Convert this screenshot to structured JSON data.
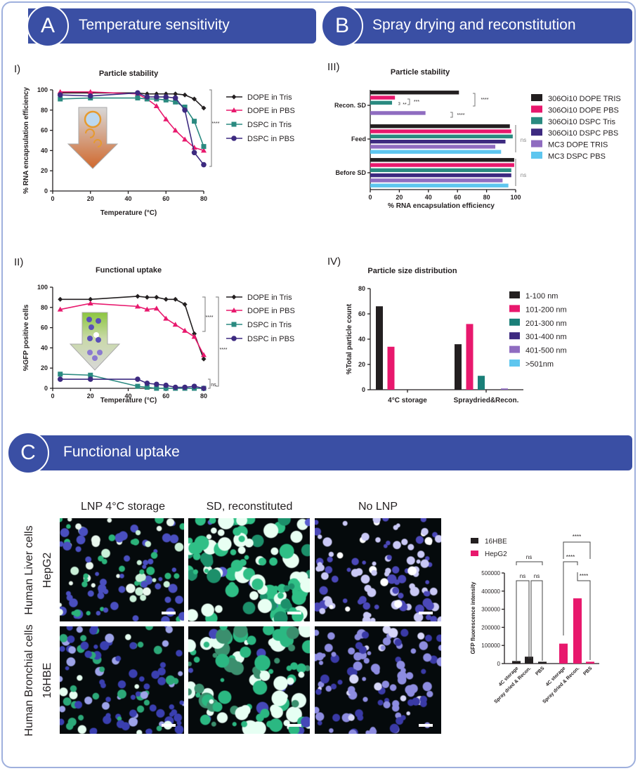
{
  "panels": {
    "A": {
      "letter": "A",
      "title": "Temperature sensitivity"
    },
    "B": {
      "letter": "B",
      "title": "Spray drying and reconstitution"
    },
    "C": {
      "letter": "C",
      "title": "Functional uptake"
    }
  },
  "microscopy": {
    "columns": [
      "LNP 4°C storage",
      "SD, reconstituted",
      "No LNP"
    ],
    "rows": [
      {
        "line1": "Human Liver cells",
        "line2": "HepG2"
      },
      {
        "line1": "Human Bronchial cells",
        "line2": "16HBE"
      }
    ]
  },
  "colors": {
    "header": "#3a4fa4",
    "black": "#231f20",
    "pink": "#e8186d",
    "teal": "#2a8a80",
    "purple": "#3d2a80",
    "lavender": "#8f6cc0",
    "lightblue": "#5ec6ef"
  },
  "chart_data": [
    {
      "panel_label": "I)",
      "type": "line",
      "title": "Particle stability",
      "xlabel": "Temperature (°C)",
      "ylabel": "% RNA encapsulation efficiency",
      "xlim": [
        0,
        80
      ],
      "xticks": [
        0,
        20,
        40,
        60,
        80
      ],
      "ylim": [
        0,
        100
      ],
      "yticks": [
        0,
        20,
        40,
        60,
        80,
        100
      ],
      "x": [
        4,
        20,
        45,
        50,
        55,
        60,
        65,
        70,
        75,
        80
      ],
      "series": [
        {
          "name": "DOPE in Tris",
          "color": "#231f20",
          "marker": "diamond",
          "values": [
            97,
            97,
            97,
            96,
            96,
            96,
            96,
            95,
            91,
            82
          ]
        },
        {
          "name": "DOPE in PBS",
          "color": "#e8186d",
          "marker": "triangle",
          "values": [
            98,
            98,
            96,
            91,
            84,
            71,
            60,
            51,
            43,
            40
          ]
        },
        {
          "name": "DSPC in Tris",
          "color": "#2a8a80",
          "marker": "square",
          "values": [
            91,
            92,
            92,
            91,
            91,
            90,
            88,
            83,
            69,
            44
          ]
        },
        {
          "name": "DSPC in PBS",
          "color": "#3d2a80",
          "marker": "circle",
          "values": [
            95,
            94,
            97,
            93,
            93,
            93,
            92,
            80,
            38,
            26
          ]
        }
      ],
      "annotations": [
        "****"
      ],
      "legend": "right"
    },
    {
      "panel_label": "II)",
      "type": "line",
      "title": "Functional uptake",
      "xlabel": "Temperature (°C)",
      "ylabel": "%GFP positive cells",
      "xlim": [
        0,
        80
      ],
      "xticks": [
        0,
        20,
        40,
        60,
        80
      ],
      "ylim": [
        0,
        100
      ],
      "yticks": [
        0,
        20,
        40,
        60,
        80,
        100
      ],
      "x": [
        4,
        20,
        45,
        50,
        55,
        60,
        65,
        70,
        75,
        80
      ],
      "series": [
        {
          "name": "DOPE in Tris",
          "color": "#231f20",
          "marker": "diamond",
          "values": [
            88,
            88,
            91,
            90,
            90,
            88,
            88,
            83,
            54,
            29
          ]
        },
        {
          "name": "DOPE in PBS",
          "color": "#e8186d",
          "marker": "triangle",
          "values": [
            78,
            84,
            81,
            78,
            79,
            69,
            63,
            57,
            51,
            33
          ]
        },
        {
          "name": "DSPC in Tris",
          "color": "#2a8a80",
          "marker": "square",
          "values": [
            14,
            13,
            2,
            1,
            0,
            0,
            0,
            0,
            0,
            0
          ]
        },
        {
          "name": "DSPC in PBS",
          "color": "#3d2a80",
          "marker": "circle",
          "values": [
            9,
            9,
            9,
            5,
            4,
            3,
            1,
            1,
            2,
            0
          ]
        }
      ],
      "annotations": [
        "****",
        "****",
        "ns"
      ],
      "legend": "right"
    },
    {
      "panel_label": "III)",
      "type": "bar",
      "orientation": "horizontal",
      "title": "Particle stability",
      "xlabel": "% RNA encapsulation efficiency",
      "xlim": [
        0,
        100
      ],
      "xticks": [
        0,
        20,
        40,
        60,
        80,
        100
      ],
      "categories": [
        "Recon. SD",
        "Feed",
        "Before SD"
      ],
      "series": [
        {
          "name": "306Oi10 DOPE TRIS",
          "color": "#231f20",
          "values": [
            61,
            96,
            99
          ]
        },
        {
          "name": "306Oi10 DOPE PBS",
          "color": "#e8186d",
          "values": [
            17,
            97,
            99
          ]
        },
        {
          "name": "306Oi10 DSPC Tris",
          "color": "#2a8a80",
          "values": [
            15,
            98,
            97
          ]
        },
        {
          "name": "306Oi10 DSPC PBS",
          "color": "#3d2a80",
          "values": [
            0,
            93,
            97
          ]
        },
        {
          "name": "MC3 DOPE TRIS",
          "color": "#8f6cc0",
          "values": [
            38,
            86,
            91
          ]
        },
        {
          "name": "MC3 DSPC PBS",
          "color": "#5ec6ef",
          "values": [
            0,
            90,
            95
          ]
        }
      ],
      "annotations": [
        "****",
        "**",
        "***",
        "****",
        "ns",
        "ns"
      ],
      "legend": "right"
    },
    {
      "panel_label": "IV)",
      "type": "bar",
      "title": "Particle size distribution",
      "ylabel": "%Total particle count",
      "ylim": [
        0,
        80
      ],
      "yticks": [
        0,
        20,
        40,
        60,
        80
      ],
      "categories": [
        "4°C storage",
        "Spraydried&Recon."
      ],
      "series": [
        {
          "name": "1-100 nm",
          "color": "#231f20",
          "values": [
            66,
            36
          ]
        },
        {
          "name": "101-200 nm",
          "color": "#e8186d",
          "values": [
            34,
            52
          ]
        },
        {
          "name": "201-300 nm",
          "color": "#1a7f78",
          "values": [
            0,
            11
          ]
        },
        {
          "name": "301-400 nm",
          "color": "#3d2a80",
          "values": [
            0,
            0
          ]
        },
        {
          "name": "401-500 nm",
          "color": "#8f6cc0",
          "values": [
            0,
            1
          ]
        },
        {
          "name": ">501nm",
          "color": "#5ec6ef",
          "values": [
            0,
            0
          ]
        }
      ],
      "legend": "right"
    },
    {
      "type": "bar",
      "ylabel": "GFP fluorescence intensity",
      "ylim": [
        0,
        500000
      ],
      "yticks": [
        0,
        100000,
        200000,
        300000,
        400000,
        500000
      ],
      "categories": [
        "4C storage",
        "Spray dried & Recon.",
        "PBS"
      ],
      "series": [
        {
          "name": "16HBE",
          "color": "#231f20",
          "values": [
            14000,
            38000,
            10000
          ]
        },
        {
          "name": "HepG2",
          "color": "#e8186d",
          "values": [
            110000,
            360000,
            10000
          ]
        }
      ],
      "annotations": [
        "ns",
        "ns",
        "ns",
        "****",
        "****",
        "****"
      ],
      "legend": "top-left"
    }
  ]
}
